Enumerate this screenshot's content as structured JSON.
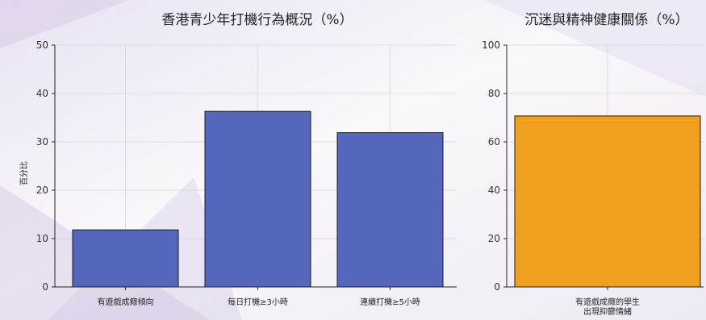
{
  "chart_data": [
    {
      "type": "bar",
      "title": "香港青少年打機行為概況（%）",
      "xlabel": "",
      "ylabel": "百分比",
      "categories": [
        "有遊戲成癮傾向",
        "每日打機≥3小時",
        "連續打機≥5小時"
      ],
      "values": [
        11.8,
        36.3,
        31.9
      ],
      "ylim": [
        0,
        50
      ],
      "yticks": [
        0,
        10,
        20,
        30,
        40,
        50
      ],
      "bar_color": "#5467bd",
      "grid": true
    },
    {
      "type": "bar",
      "title": "沉迷與精神健康關係（%）",
      "xlabel": "",
      "ylabel": "",
      "categories": [
        [
          "有遊戲成癮的學生",
          "出現抑鬱情緒"
        ]
      ],
      "values": [
        70.7
      ],
      "ylim": [
        0,
        100
      ],
      "yticks": [
        0,
        20,
        40,
        60,
        80,
        100
      ],
      "bar_color": "#f0a01e",
      "grid": true
    }
  ]
}
